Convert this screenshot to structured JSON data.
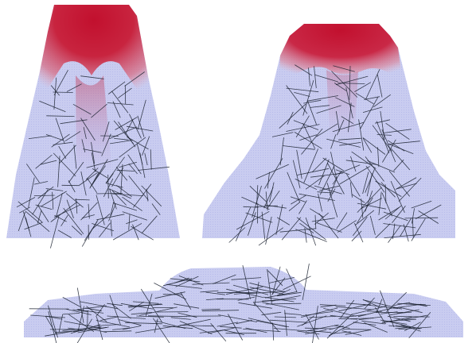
{
  "palette": {
    "background": "#ffffff",
    "body_fill": "#c9ccf0",
    "body_texture": "#b3b8ea",
    "heat_core": "#c2102e",
    "heat_mid": "#cf4a63",
    "heat_soft": "#e8a6b2",
    "fiber_stroke": "#1b2230"
  },
  "panels": [
    {
      "name": "tall-tapered-column",
      "fiber_count": 150,
      "fiber_length": 30,
      "heat_level": 0.85
    },
    {
      "name": "flared-volcano",
      "fiber_count": 190,
      "fiber_length": 34,
      "heat_level": 0.35
    },
    {
      "name": "flat-slab",
      "fiber_count": 210,
      "fiber_length": 36,
      "heat_level": 0
    }
  ]
}
